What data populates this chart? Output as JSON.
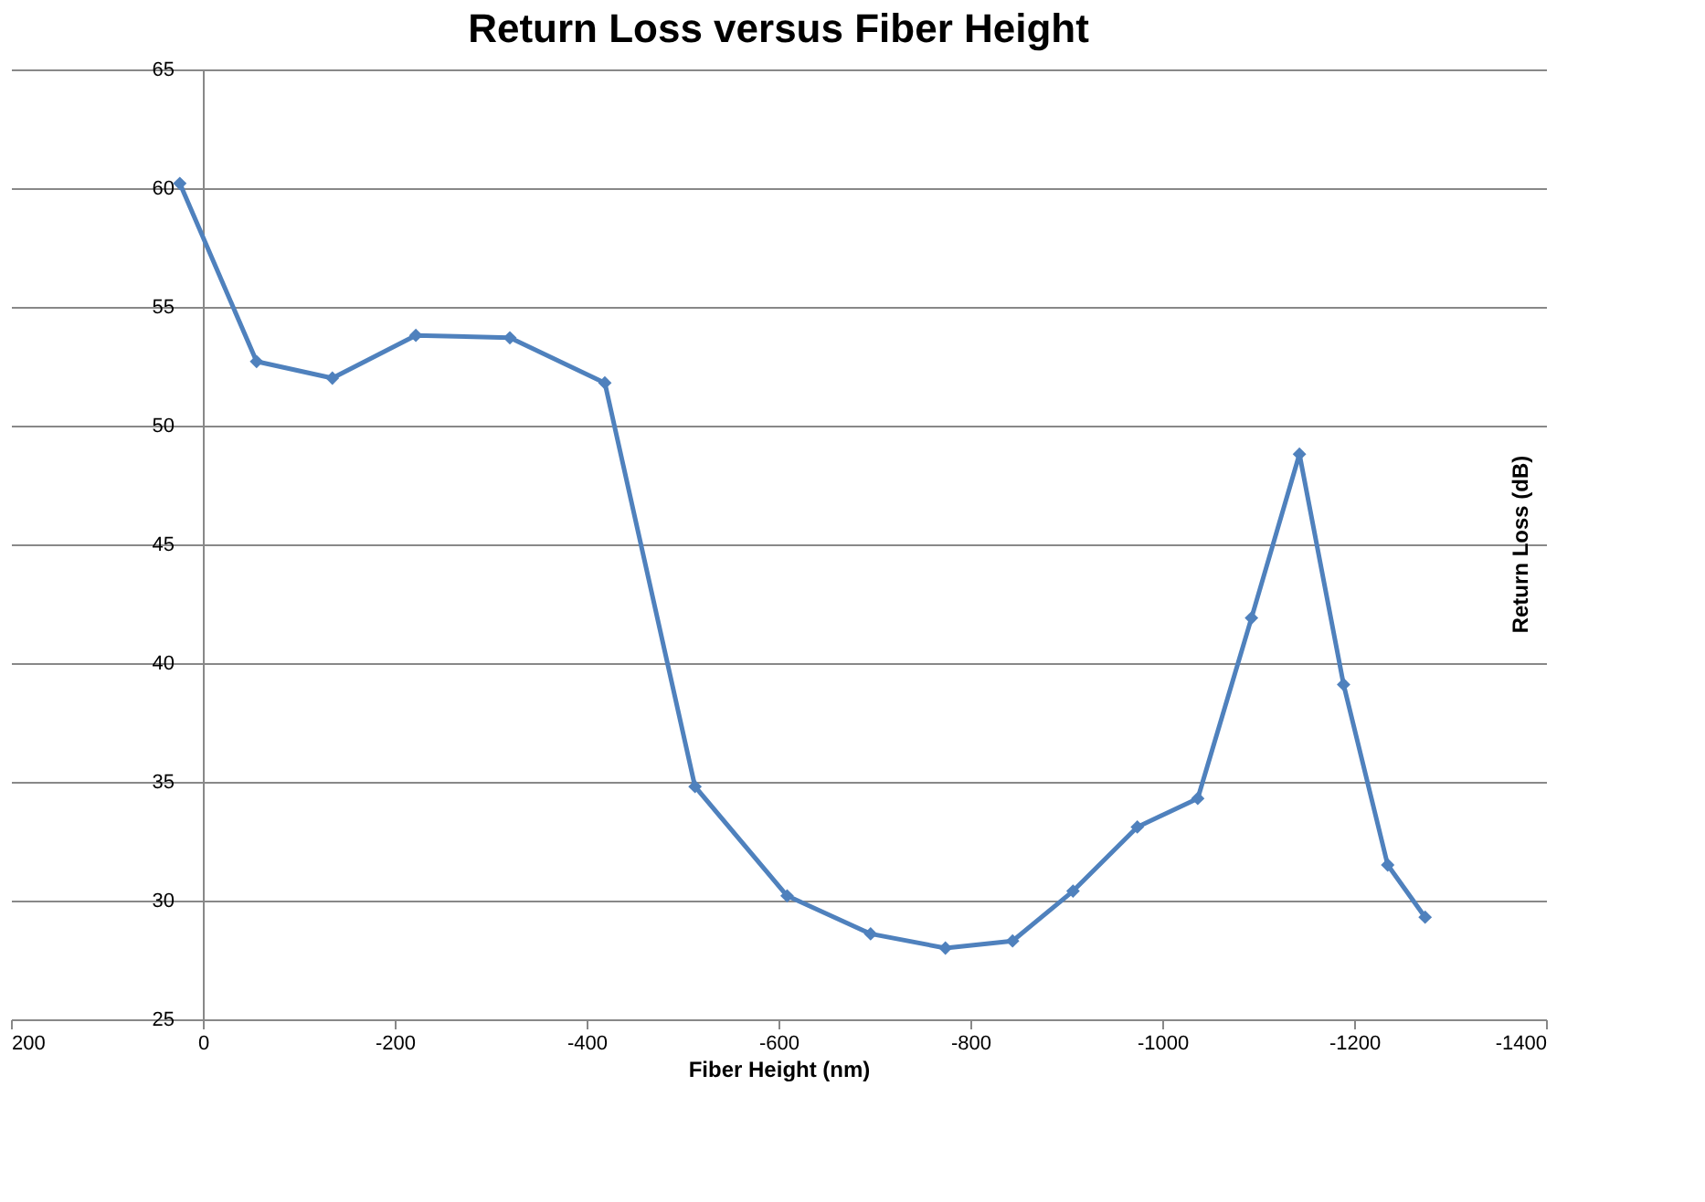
{
  "chart_data": {
    "type": "line",
    "title": "Return Loss versus Fiber Height",
    "xlabel": "Fiber Height (nm)",
    "ylabel": "Return Loss (dB)",
    "x": [
      24,
      -56,
      -135,
      -222,
      -320,
      -419,
      -513,
      -609,
      -696,
      -774,
      -844,
      -907,
      -974,
      -1037,
      -1093,
      -1143,
      -1189,
      -1235,
      -1274
    ],
    "series": [
      {
        "color": "#4f81bd",
        "values": [
          60.2,
          52.7,
          52.0,
          53.8,
          53.7,
          51.8,
          34.8,
          30.2,
          28.6,
          28.0,
          28.3,
          30.4,
          33.1,
          34.3,
          41.9,
          48.8,
          39.1,
          31.5,
          29.3
        ]
      }
    ],
    "xlim": [
      200,
      -1400
    ],
    "xticks": [
      200,
      0,
      -200,
      -400,
      -600,
      -800,
      -1000,
      -1200,
      -1400
    ],
    "ylim": [
      25,
      65
    ],
    "yticks": [
      25,
      30,
      35,
      40,
      45,
      50,
      55,
      60,
      65
    ],
    "grid": "y",
    "marker": "diamond",
    "line_style": "solid"
  }
}
